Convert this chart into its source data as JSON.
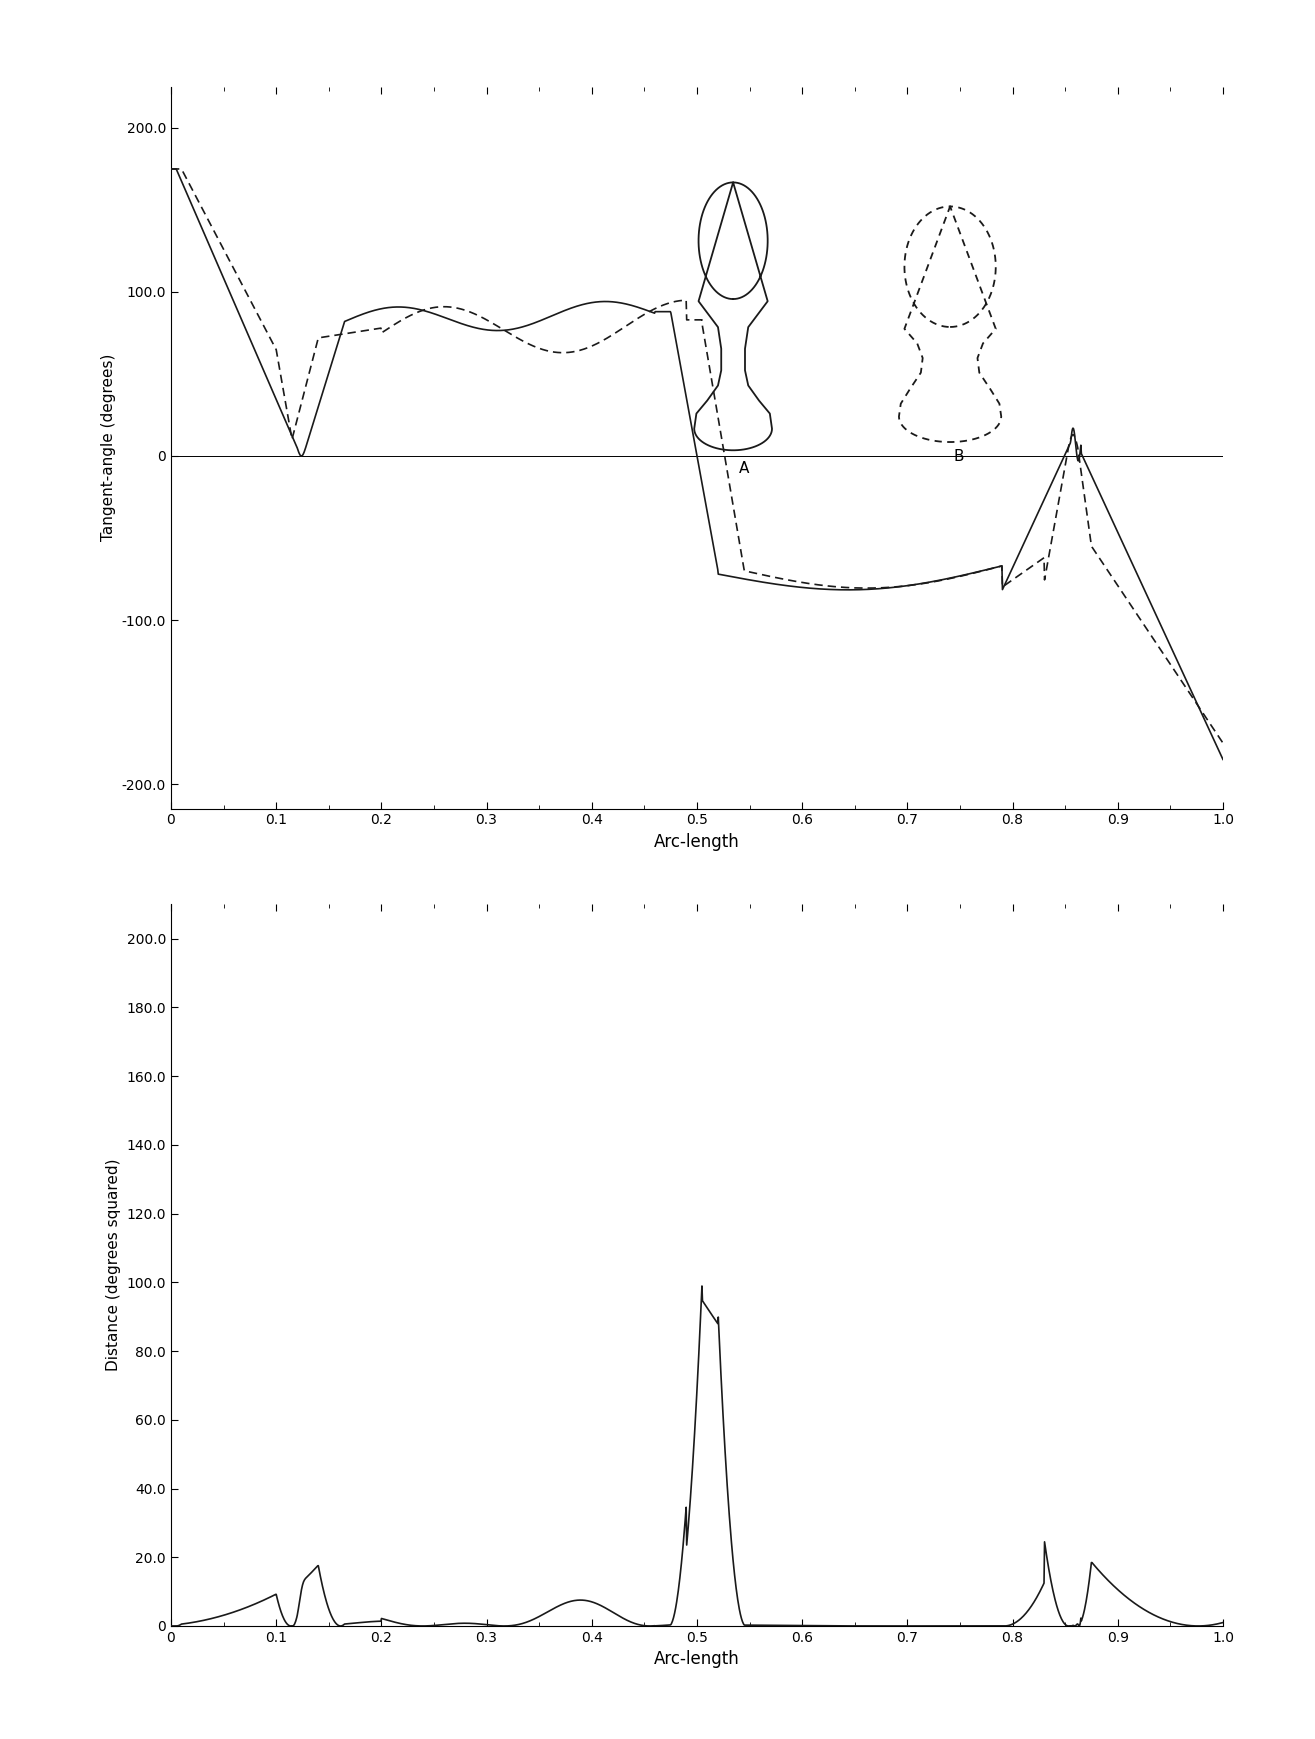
{
  "fig_width": 13.15,
  "fig_height": 17.39,
  "dpi": 100,
  "bg_color": "#ffffff",
  "top_plot": {
    "ylabel": "Tangent-angle (degrees)",
    "xlabel": "Arc-length",
    "ylim": [
      -215,
      225
    ],
    "xlim": [
      0,
      1.0
    ],
    "yticks": [
      -200.0,
      -100.0,
      0,
      100.0,
      200.0
    ],
    "ytick_labels": [
      "-200.0",
      "-100.0",
      "0",
      "100.0",
      "200.0"
    ],
    "xticks": [
      0,
      0.1,
      0.2,
      0.3,
      0.4,
      0.5,
      0.6,
      0.7,
      0.8,
      0.9,
      1.0
    ],
    "xtick_labels": [
      "0",
      "0.1",
      "0.2",
      "0.3",
      "0.4",
      "0.5",
      "0.6",
      "0.7",
      "0.8",
      "0.9",
      "1.0"
    ]
  },
  "bottom_plot": {
    "ylabel": "Distance (degrees squared)",
    "xlabel": "Arc-length",
    "ylim": [
      0,
      210
    ],
    "xlim": [
      0,
      1.0
    ],
    "yticks": [
      0,
      20.0,
      40.0,
      60.0,
      80.0,
      100.0,
      120.0,
      140.0,
      160.0,
      180.0,
      200.0
    ],
    "ytick_labels": [
      "0",
      "20.0",
      "40.0",
      "60.0",
      "80.0",
      "100.0",
      "120.0",
      "140.0",
      "160.0",
      "180.0",
      "200.0"
    ],
    "xticks": [
      0,
      0.1,
      0.2,
      0.3,
      0.4,
      0.5,
      0.6,
      0.7,
      0.8,
      0.9,
      1.0
    ],
    "xtick_labels": [
      "0",
      "0.1",
      "0.2",
      "0.3",
      "0.4",
      "0.5",
      "0.6",
      "0.7",
      "0.8",
      "0.9",
      "1.0"
    ]
  },
  "line_color": "#1a1a1a",
  "line_width": 1.2
}
